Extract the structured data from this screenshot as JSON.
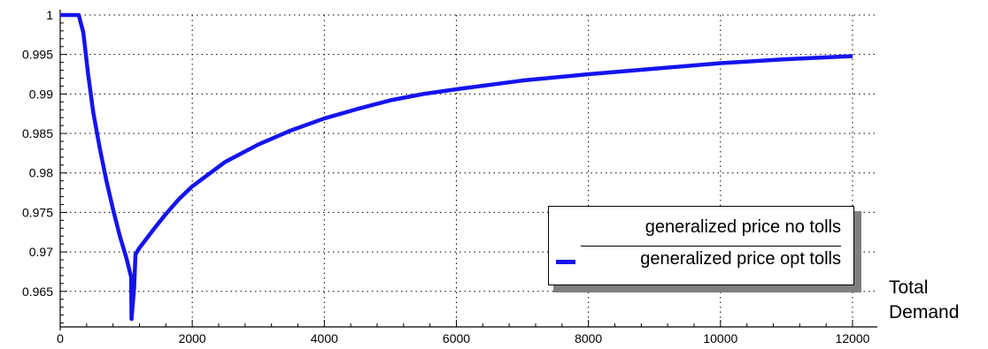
{
  "chart_data": {
    "type": "line",
    "xlabel": "Total Demand",
    "xlabel_lines": [
      "Total",
      "Demand"
    ],
    "ylabel": "",
    "xlim": [
      0,
      12000
    ],
    "ylim": [
      0.9605,
      1.0
    ],
    "x_ticks": [
      0,
      2000,
      4000,
      6000,
      8000,
      10000,
      12000
    ],
    "y_ticks": [
      0.965,
      0.97,
      0.975,
      0.98,
      0.985,
      0.99,
      0.995,
      1
    ],
    "y_tick_labels": [
      "0.965",
      "0.97",
      "0.975",
      "0.98",
      "0.985",
      "0.99",
      "0.995",
      "1"
    ],
    "grid": true,
    "legend_position": "bottom-right",
    "legend": [
      "generalized price no tolls",
      "generalized price opt tolls"
    ],
    "series": [
      {
        "name": "generalized price no tolls",
        "color": "#1414ee",
        "x": [
          0
        ],
        "y": [
          1.0
        ]
      },
      {
        "name": "generalized price opt tolls",
        "color": "#1414ee",
        "x": [
          0,
          150,
          280,
          350,
          420,
          500,
          600,
          700,
          800,
          900,
          1000,
          1075,
          1080,
          1120,
          1140,
          1200,
          1400,
          1600,
          1800,
          2000,
          2500,
          3000,
          3500,
          4000,
          4500,
          5000,
          5500,
          6000,
          7000,
          8000,
          9000,
          10000,
          11000,
          12000
        ],
        "y": [
          1.0,
          1.0,
          1.0,
          0.9978,
          0.9927,
          0.9877,
          0.9831,
          0.979,
          0.9754,
          0.9721,
          0.9693,
          0.9668,
          0.9615,
          0.9655,
          0.9697,
          0.9705,
          0.9727,
          0.9748,
          0.9767,
          0.9783,
          0.9814,
          0.9836,
          0.9854,
          0.9869,
          0.9881,
          0.9892,
          0.99,
          0.9906,
          0.9917,
          0.9925,
          0.9932,
          0.9939,
          0.9944,
          0.9948
        ]
      }
    ]
  }
}
